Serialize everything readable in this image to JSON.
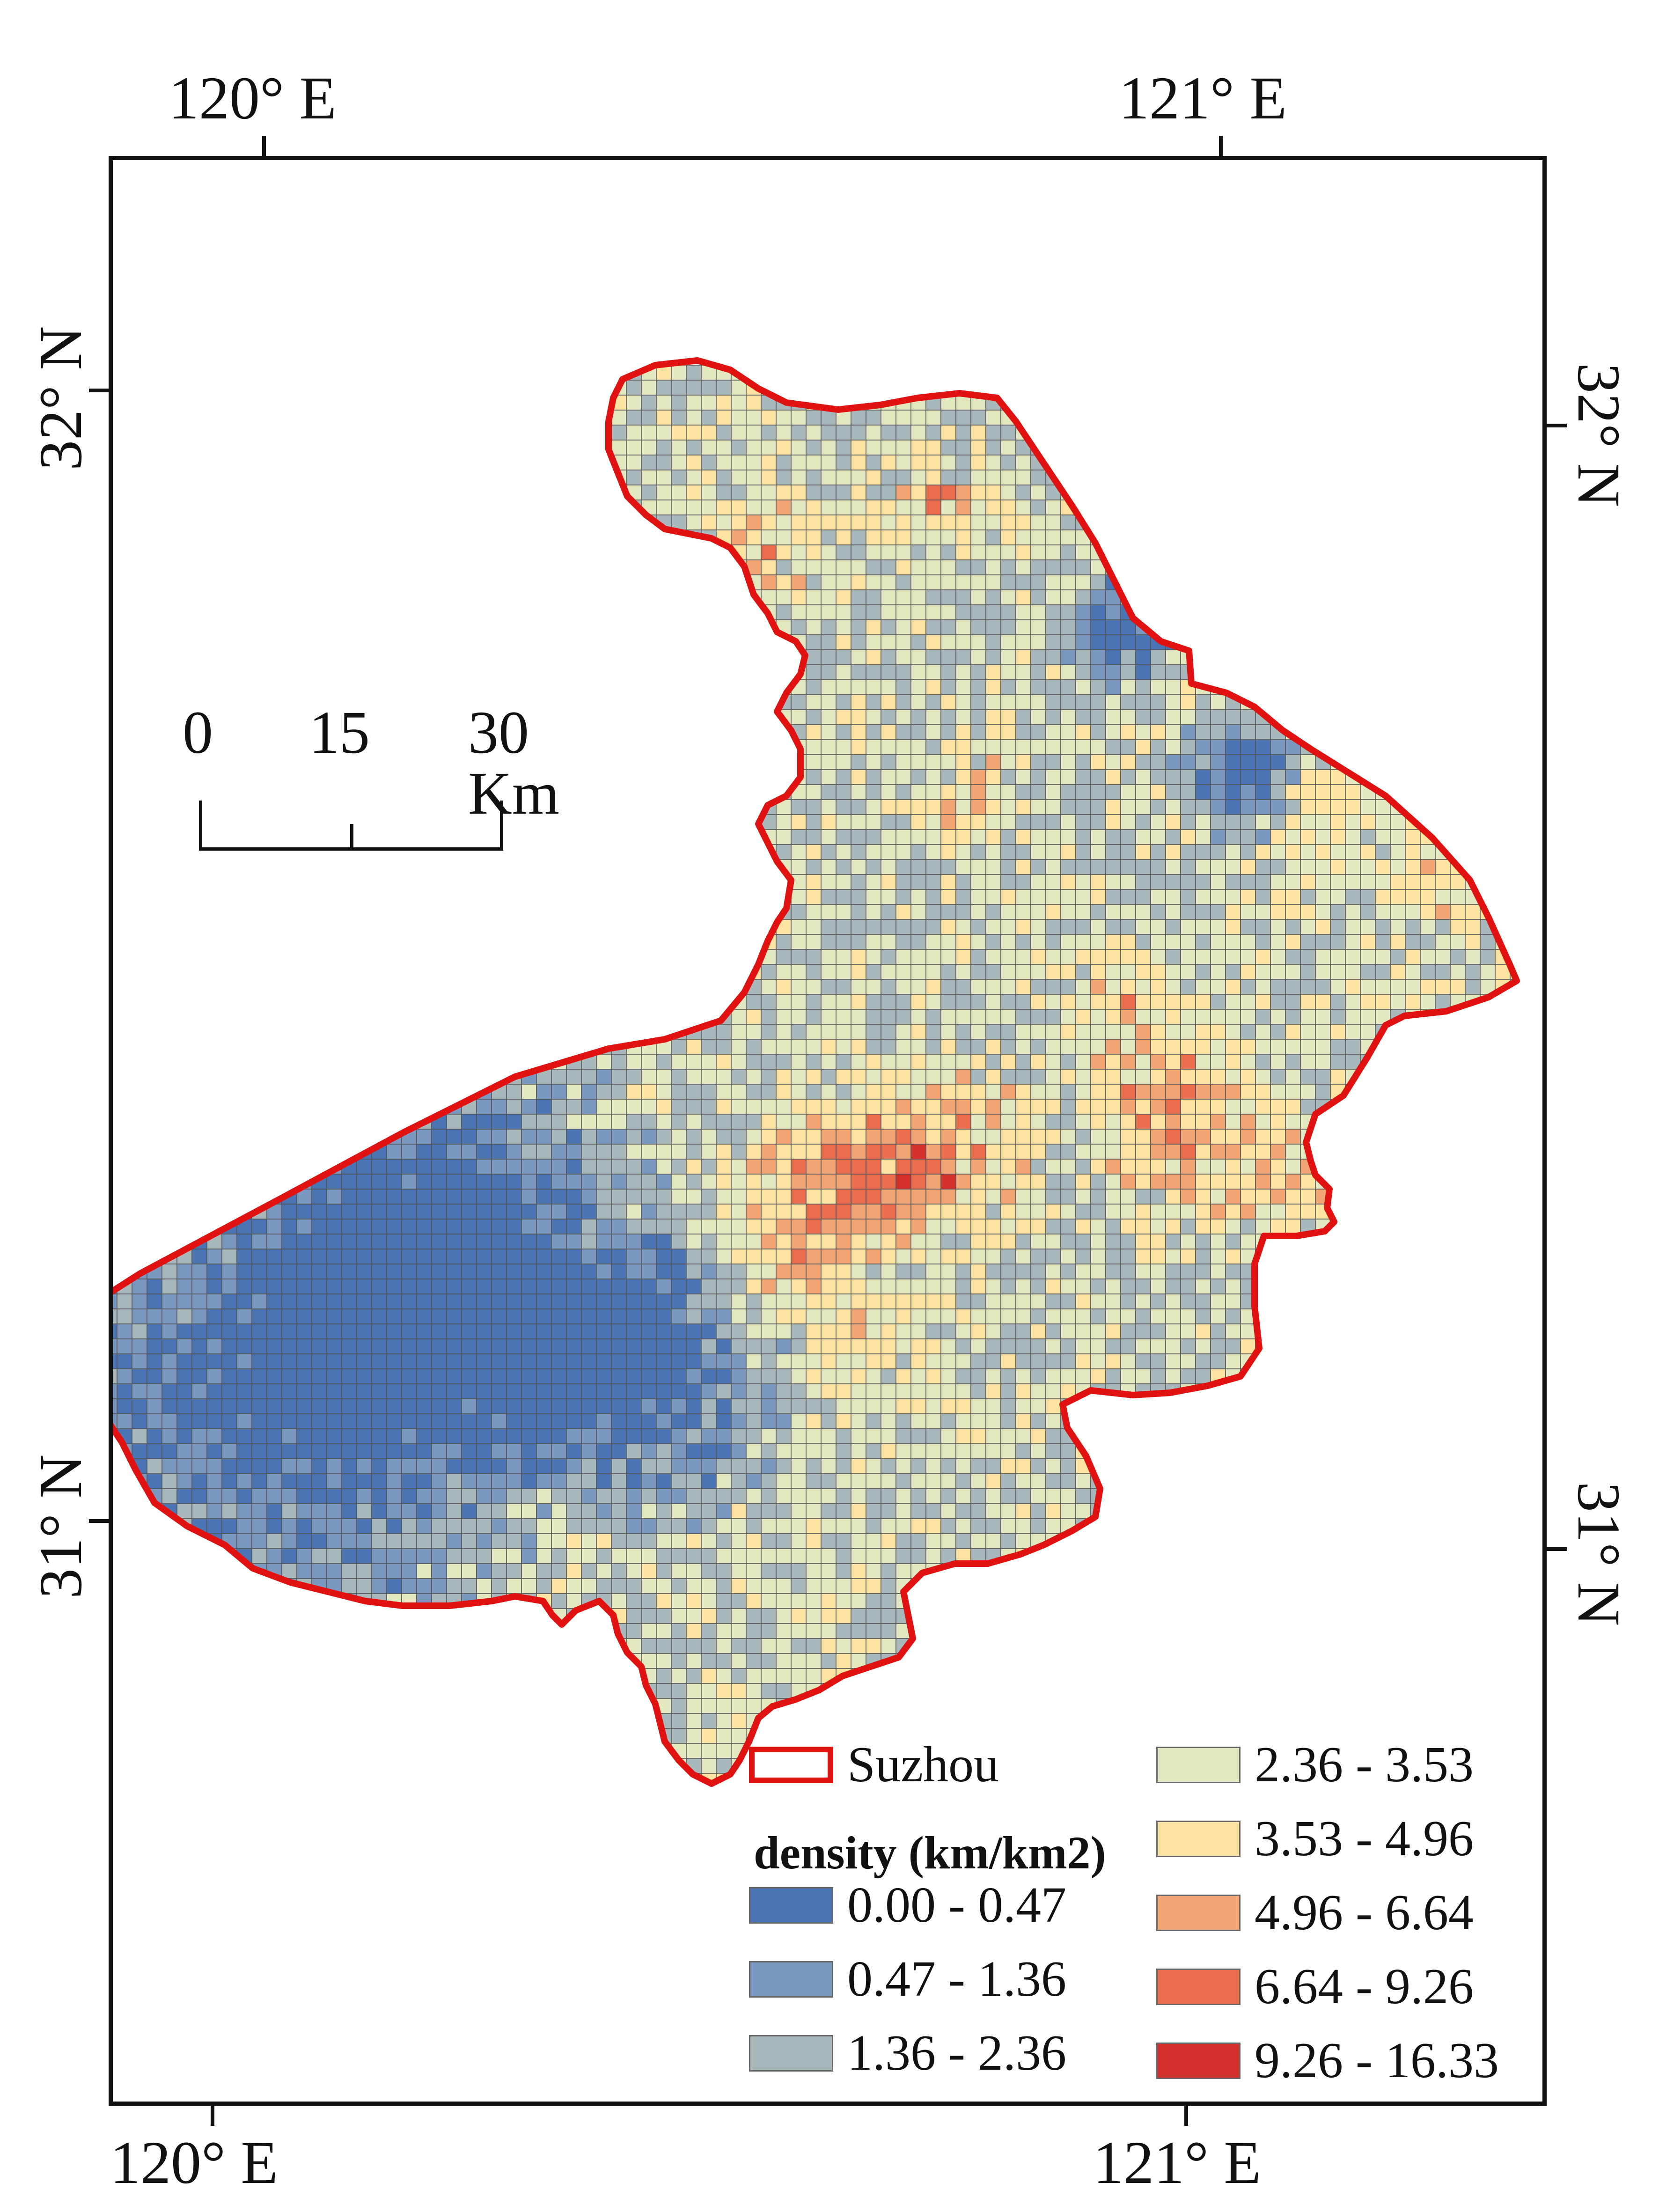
{
  "axes": {
    "top_labels": [
      "120° E",
      "121° E"
    ],
    "bottom_labels": [
      "120° E",
      "121° E"
    ],
    "left_labels": [
      "32° N",
      "31° N"
    ],
    "right_labels": [
      "32° N",
      "31° N"
    ]
  },
  "scale_bar": {
    "labels": [
      "0",
      "15",
      "30 Km"
    ]
  },
  "legend": {
    "boundary_label": "Suzhou",
    "title": "density (km/km2)",
    "classes": [
      {
        "label": "0.00 - 0.47",
        "color": "#4a74b4"
      },
      {
        "label": "0.47 - 1.36",
        "color": "#7a98c0"
      },
      {
        "label": "1.36 - 2.36",
        "color": "#a9b8bb"
      },
      {
        "label": "2.36 - 3.53",
        "color": "#e4e8c1"
      },
      {
        "label": "3.53 - 4.96",
        "color": "#fde3a2"
      },
      {
        "label": "4.96 - 6.64",
        "color": "#f3a675"
      },
      {
        "label": "6.64 - 9.26",
        "color": "#e86d4e"
      },
      {
        "label": "9.26 - 16.33",
        "color": "#d42f2b"
      }
    ]
  },
  "colors": {
    "boundary": "#e01212",
    "grid_line": "#555555"
  }
}
